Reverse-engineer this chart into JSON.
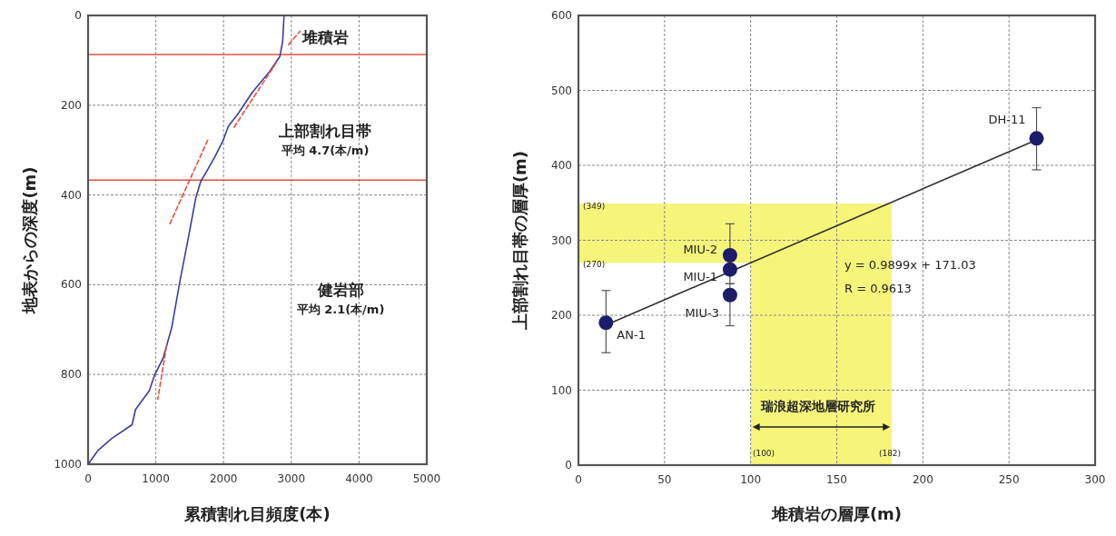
{
  "chart_data": [
    {
      "type": "line",
      "xlabel": "累積割れ目頻度(本)",
      "ylabel": "地表からの深度(m)",
      "xlim": [
        0,
        5000
      ],
      "ylim": [
        1000,
        0
      ],
      "xticks": [
        0,
        1000,
        2000,
        3000,
        4000,
        5000
      ],
      "yticks": [
        0,
        200,
        400,
        600,
        800,
        1000
      ],
      "grid": true,
      "series": [
        {
          "color": "#3c3ca0",
          "line_style": "solid",
          "x": [
            2893,
            2873,
            2832,
            2680,
            2426,
            2223,
            2071,
            1995,
            1868,
            1741,
            1665,
            1589,
            1487,
            1360,
            1234,
            1107,
            980,
            904,
            701,
            650,
            345,
            142,
            0
          ],
          "values": [
            0,
            57,
            91,
            125,
            171,
            217,
            247,
            278,
            316,
            350,
            369,
            407,
            490,
            589,
            696,
            764,
            802,
            836,
            878,
            912,
            943,
            970,
            1000
          ]
        },
        {
          "color": "#e8503c",
          "line_style": "dashed",
          "x": [
            2960,
            3130
          ],
          "values": [
            65,
            35
          ]
        },
        {
          "color": "#e8503c",
          "line_style": "dashed",
          "x": [
            2780,
            2150
          ],
          "values": [
            105,
            250
          ]
        },
        {
          "color": "#e8503c",
          "line_style": "dashed",
          "x": [
            1766,
            1208
          ],
          "values": [
            278,
            464
          ]
        },
        {
          "color": "#e8503c",
          "line_style": "dashed",
          "x": [
            1157,
            1030
          ],
          "values": [
            737,
            855
          ]
        }
      ],
      "ref_lines": [
        {
          "axis": "y",
          "value": 87,
          "color": "#e8503c"
        },
        {
          "axis": "y",
          "value": 367,
          "color": "#e8503c"
        }
      ],
      "annotations": [
        "堆積岩",
        "上部割れ目帯",
        "平均 4.7(本/m)",
        "健岩部",
        "平均 2.1(本/m)"
      ]
    },
    {
      "type": "scatter",
      "xlabel": "堆積岩の層厚(m)",
      "ylabel": "上部割れ目帯の層厚(m)",
      "xlim": [
        0,
        300
      ],
      "ylim": [
        0,
        600
      ],
      "xticks": [
        0,
        50,
        100,
        150,
        200,
        250,
        300
      ],
      "yticks": [
        0,
        100,
        200,
        300,
        400,
        500,
        600
      ],
      "grid": true,
      "series": [
        {
          "color": "#1c1c6a",
          "marker": "circle",
          "x": [
            16,
            88,
            88,
            88,
            266
          ],
          "values": [
            190,
            280,
            261,
            227,
            436
          ],
          "errors": [
            [
              150,
              233
            ],
            [
              242,
              322
            ],
            null,
            [
              186,
              242
            ],
            [
              394,
              477
            ]
          ]
        },
        {
          "type": "line",
          "color": "#303030",
          "line_style": "solid",
          "x": [
            16,
            266
          ],
          "values": [
            187,
            434
          ]
        }
      ],
      "bands": [
        {
          "axis": "x",
          "from": 100,
          "to": 182,
          "color": "#f5f57a"
        },
        {
          "axis": "y",
          "from": 270,
          "to": 349,
          "color": "#f5f57a"
        }
      ],
      "annotations": [
        {
          "text": "AN-1",
          "x": 16,
          "y": 190
        },
        {
          "text": "MIU-2",
          "x": 88,
          "y": 280
        },
        {
          "text": "MIU-1",
          "x": 88,
          "y": 261
        },
        {
          "text": "MIU-3",
          "x": 88,
          "y": 227
        },
        {
          "text": "DH-11",
          "x": 266,
          "y": 436
        },
        "(349)",
        "(270)",
        "(100)",
        "(182)",
        "瑞浪超深地層研究所",
        "y = 0.9899x + 171.03",
        "R = 0.9613"
      ]
    }
  ]
}
